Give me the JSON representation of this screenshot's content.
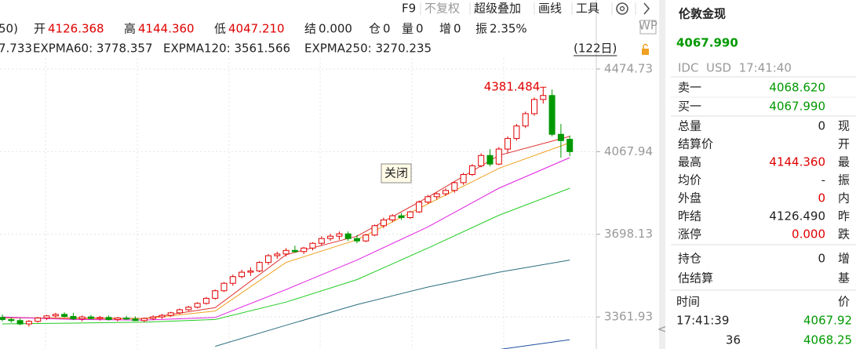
{
  "toolbar": {
    "items": [
      "F9",
      "不复权",
      "超级叠加",
      "画线",
      "工具"
    ]
  },
  "info": [
    {
      "label": "50)",
      "value": ""
    },
    {
      "label": "开",
      "value": "4126.368"
    },
    {
      "label": "高",
      "value": "4144.360"
    },
    {
      "label": "低",
      "value": "4047.210"
    },
    {
      "label": "结",
      "value": "0.000"
    },
    {
      "label": "仓",
      "value": "0"
    },
    {
      "label": "量",
      "value": "0"
    },
    {
      "label": "增",
      "value": "0"
    },
    {
      "label": "振",
      "value": "2.35%"
    }
  ],
  "chart_data": {
    "type": "candlestick",
    "log_scale": true,
    "grid": true,
    "ylim": [
      3240,
      4507
    ],
    "yticks": [
      4474.73,
      4067.94,
      3698.13,
      3361.93
    ],
    "period_label": "(122日)",
    "max_label": "4381.484",
    "max_index": 61,
    "up_color": "#e00000",
    "down_color": "#009900",
    "candles": [
      [
        3360,
        3372,
        3345,
        3352
      ],
      [
        3352,
        3360,
        3340,
        3348
      ],
      [
        3348,
        3356,
        3330,
        3335
      ],
      [
        3335,
        3350,
        3325,
        3345
      ],
      [
        3345,
        3362,
        3340,
        3358
      ],
      [
        3358,
        3370,
        3350,
        3366
      ],
      [
        3366,
        3378,
        3360,
        3372
      ],
      [
        3372,
        3380,
        3360,
        3364
      ],
      [
        3364,
        3378,
        3350,
        3355
      ],
      [
        3355,
        3368,
        3345,
        3362
      ],
      [
        3362,
        3370,
        3352,
        3356
      ],
      [
        3356,
        3366,
        3348,
        3360
      ],
      [
        3360,
        3368,
        3348,
        3352
      ],
      [
        3352,
        3362,
        3345,
        3358
      ],
      [
        3358,
        3366,
        3350,
        3354
      ],
      [
        3354,
        3364,
        3346,
        3348
      ],
      [
        3348,
        3360,
        3342,
        3356
      ],
      [
        3356,
        3368,
        3350,
        3362
      ],
      [
        3362,
        3374,
        3355,
        3368
      ],
      [
        3368,
        3382,
        3362,
        3378
      ],
      [
        3378,
        3395,
        3372,
        3390
      ],
      [
        3390,
        3405,
        3385,
        3400
      ],
      [
        3400,
        3420,
        3395,
        3415
      ],
      [
        3415,
        3440,
        3410,
        3435
      ],
      [
        3435,
        3470,
        3430,
        3465
      ],
      [
        3465,
        3500,
        3460,
        3495
      ],
      [
        3495,
        3530,
        3485,
        3522
      ],
      [
        3522,
        3550,
        3515,
        3540
      ],
      [
        3540,
        3560,
        3525,
        3545
      ],
      [
        3545,
        3585,
        3540,
        3580
      ],
      [
        3580,
        3615,
        3570,
        3608
      ],
      [
        3608,
        3625,
        3595,
        3615
      ],
      [
        3615,
        3640,
        3605,
        3630
      ],
      [
        3630,
        3650,
        3620,
        3625
      ],
      [
        3625,
        3645,
        3615,
        3640
      ],
      [
        3640,
        3665,
        3630,
        3660
      ],
      [
        3660,
        3690,
        3650,
        3680
      ],
      [
        3680,
        3700,
        3670,
        3690
      ],
      [
        3690,
        3710,
        3675,
        3700
      ],
      [
        3700,
        3710,
        3670,
        3680
      ],
      [
        3680,
        3695,
        3660,
        3670
      ],
      [
        3670,
        3700,
        3665,
        3695
      ],
      [
        3695,
        3740,
        3690,
        3735
      ],
      [
        3735,
        3770,
        3725,
        3760
      ],
      [
        3760,
        3785,
        3750,
        3778
      ],
      [
        3778,
        3790,
        3760,
        3770
      ],
      [
        3770,
        3800,
        3765,
        3795
      ],
      [
        3795,
        3845,
        3790,
        3838
      ],
      [
        3838,
        3870,
        3830,
        3862
      ],
      [
        3862,
        3880,
        3850,
        3875
      ],
      [
        3875,
        3900,
        3865,
        3890
      ],
      [
        3890,
        3930,
        3880,
        3925
      ],
      [
        3925,
        3970,
        3915,
        3962
      ],
      [
        3962,
        4010,
        3955,
        4002
      ],
      [
        4002,
        4060,
        3995,
        4050
      ],
      [
        4050,
        4080,
        4000,
        4010
      ],
      [
        4010,
        4090,
        4005,
        4080
      ],
      [
        4080,
        4140,
        4060,
        4130
      ],
      [
        4130,
        4200,
        4120,
        4190
      ],
      [
        4190,
        4260,
        4180,
        4250
      ],
      [
        4250,
        4330,
        4240,
        4320
      ],
      [
        4320,
        4381.484,
        4300,
        4340
      ],
      [
        4340,
        4370,
        4140,
        4150
      ],
      [
        4150,
        4200,
        4040,
        4120
      ],
      [
        4126.368,
        4144.36,
        4047.21,
        4067.99
      ]
    ],
    "line_x": [
      0,
      8,
      16,
      24,
      32,
      40,
      48,
      56,
      64
    ],
    "series": [
      {
        "color": "#e03030",
        "values": [
          3358,
          3358,
          3356,
          3398,
          3612,
          3690,
          3860,
          4050,
          4140
        ]
      },
      {
        "color": "#f0a020",
        "values": [
          3360,
          3356,
          3355,
          3385,
          3580,
          3675,
          3830,
          3990,
          4110
        ]
      },
      {
        "name": "7.733",
        "color": "#e020e0",
        "values": [
          3362,
          3352,
          3350,
          3360,
          3470,
          3590,
          3730,
          3900,
          4040
        ]
      },
      {
        "name": "EXPMA60: 3778.357",
        "color": "#22cc22",
        "values": [
          3335,
          3338,
          3342,
          3352,
          3420,
          3510,
          3640,
          3780,
          3900
        ]
      },
      {
        "name": "EXPMA120: 3561.566",
        "color": "#2a6f80",
        "values": [
          null,
          null,
          null,
          3250,
          3330,
          3410,
          3480,
          3540,
          3590
        ]
      },
      {
        "name": "EXPMA250: 3270.235",
        "color": "#1f4fa0",
        "values": [
          null,
          null,
          null,
          null,
          null,
          null,
          null,
          3238,
          3275
        ]
      }
    ]
  },
  "button": "关闭",
  "panel": {
    "title": "伦敦金现",
    "price": "4067.990",
    "meta": "IDC  USD  17:41:40",
    "quotes": [
      [
        "卖一",
        "4068.620"
      ],
      [
        "买一",
        "4067.990"
      ]
    ],
    "stats": [
      [
        "总量",
        "0",
        "现"
      ],
      [
        "结算价",
        "",
        "开"
      ],
      [
        "最高",
        "4144.360",
        "最"
      ],
      [
        "均价",
        "-",
        "振"
      ],
      [
        "外盘",
        "0",
        "内"
      ],
      [
        "昨结",
        "4126.490",
        "昨"
      ],
      [
        "涨停",
        "0.000",
        "跌"
      ]
    ],
    "stats2": [
      [
        "持仓",
        "0",
        "增"
      ],
      [
        "估结算",
        "",
        "基"
      ]
    ],
    "ticks_header": [
      "时间",
      "价"
    ],
    "ticks": [
      [
        "17:41:39",
        "4067.92"
      ],
      [
        "36",
        "4068.25"
      ]
    ]
  }
}
